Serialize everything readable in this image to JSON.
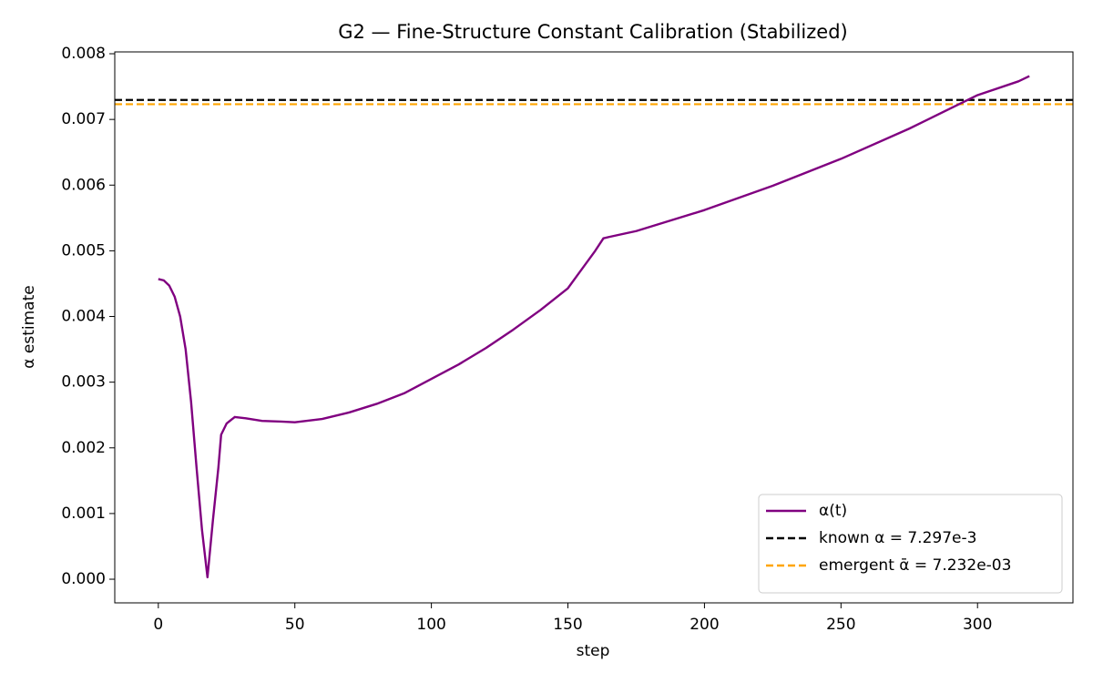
{
  "chart_data": {
    "type": "line",
    "title": "G2 — Fine-Structure Constant Calibration (Stabilized)",
    "x_label": "step",
    "y_label": "α estimate",
    "series": [
      {
        "name": "α(t)",
        "color": "#800080",
        "x": [
          0,
          2,
          4,
          6,
          8,
          10,
          12,
          14,
          16,
          18,
          20,
          22,
          23,
          25,
          28,
          32,
          38,
          45,
          50,
          60,
          70,
          80,
          90,
          100,
          110,
          120,
          130,
          140,
          150,
          160,
          163,
          165,
          175,
          200,
          225,
          250,
          275,
          300,
          315,
          319
        ],
        "values": [
          0.00457,
          0.00455,
          0.00447,
          0.0043,
          0.004,
          0.0035,
          0.0027,
          0.0017,
          0.00075,
          3e-05,
          0.0009,
          0.0017,
          0.0022,
          0.00237,
          0.00247,
          0.00245,
          0.00241,
          0.0024,
          0.00239,
          0.00244,
          0.00254,
          0.00267,
          0.00283,
          0.00305,
          0.00327,
          0.00352,
          0.0038,
          0.0041,
          0.00443,
          0.005,
          0.00519,
          0.00521,
          0.0053,
          0.00562,
          0.00599,
          0.0064,
          0.00686,
          0.00737,
          0.00758,
          0.00766
        ]
      }
    ],
    "hlines": [
      {
        "name": "known α = 7.297e-3",
        "value": 0.007297,
        "color": "#000000"
      },
      {
        "name": "emergent ᾱ = 7.232e-03",
        "value": 0.007232,
        "color": "#ffa500"
      }
    ],
    "xlim": [
      -15.95,
      334.95
    ],
    "ylim": [
      -0.00036,
      0.008028
    ],
    "xticks": [
      0,
      50,
      100,
      150,
      200,
      250,
      300
    ],
    "yticks": [
      {
        "value": 0,
        "label": "0.000"
      },
      {
        "value": 0.001,
        "label": "0.001"
      },
      {
        "value": 0.002,
        "label": "0.002"
      },
      {
        "value": 0.003,
        "label": "0.003"
      },
      {
        "value": 0.004,
        "label": "0.004"
      },
      {
        "value": 0.005,
        "label": "0.005"
      },
      {
        "value": 0.006,
        "label": "0.006"
      },
      {
        "value": 0.007,
        "label": "0.007"
      },
      {
        "value": 0.008,
        "label": "0.008"
      }
    ],
    "legend": "lower right"
  }
}
